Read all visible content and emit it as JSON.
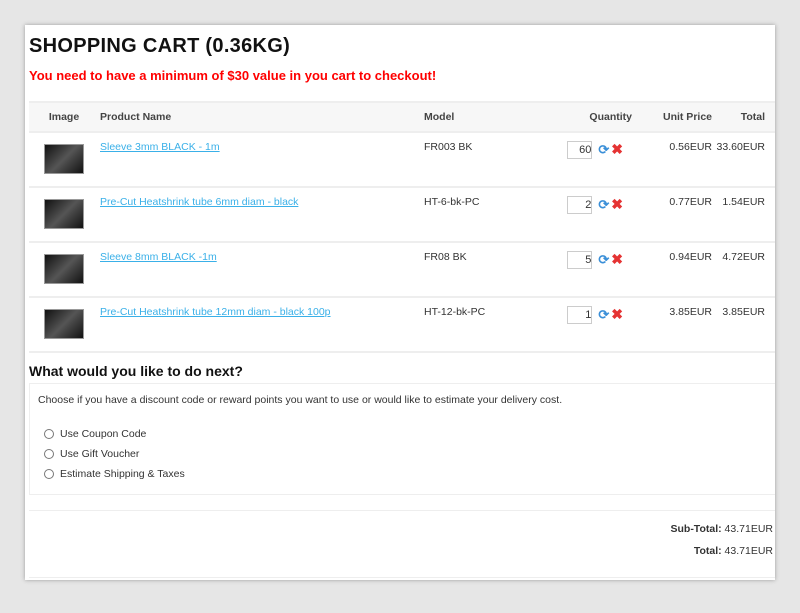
{
  "title": "SHOPPING CART  (0.36KG)",
  "warning": "You need to have a minimum of $30 value in you cart to checkout!",
  "table": {
    "headers": [
      "Image",
      "Product Name",
      "Model",
      "Quantity",
      "Unit Price",
      "Total"
    ],
    "rows": [
      {
        "name": "Sleeve 3mm BLACK - 1m",
        "model": "FR003 BK",
        "qty": "60",
        "unit": "0.56EUR",
        "total": "33.60EUR"
      },
      {
        "name": "Pre-Cut Heatshrink tube 6mm diam - black",
        "model": "HT-6-bk-PC",
        "qty": "2",
        "unit": "0.77EUR",
        "total": "1.54EUR"
      },
      {
        "name": "Sleeve 8mm BLACK -1m",
        "model": "FR08 BK",
        "qty": "5",
        "unit": "0.94EUR",
        "total": "4.72EUR"
      },
      {
        "name": "Pre-Cut Heatshrink tube 12mm diam - black 100p",
        "model": "HT-12-bk-PC",
        "qty": "1",
        "unit": "3.85EUR",
        "total": "3.85EUR"
      }
    ]
  },
  "next": {
    "title": "What would you like to do next?",
    "desc": "Choose if you have a discount code or reward points you want to use or would like to estimate your delivery cost.",
    "options": [
      "Use Coupon Code",
      "Use Gift Voucher",
      "Estimate Shipping & Taxes"
    ]
  },
  "totals": {
    "subtotal_label": "Sub-Total:",
    "subtotal": "43.71EUR",
    "total_label": "Total:",
    "total": "43.71EUR"
  }
}
